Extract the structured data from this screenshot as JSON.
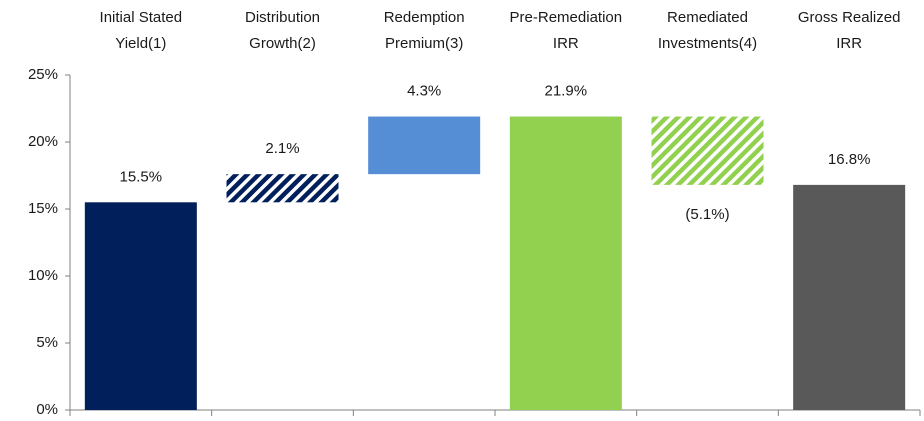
{
  "chart_data": {
    "type": "waterfall",
    "categories": [
      [
        "Initial Stated",
        "Yield(1)"
      ],
      [
        "Distribution",
        "Growth(2)"
      ],
      [
        "Redemption",
        "Premium(3)"
      ],
      [
        "Pre-Remediation",
        "IRR"
      ],
      [
        "Remediated",
        "Investments(4)"
      ],
      [
        "Gross Realized",
        "IRR"
      ]
    ],
    "values": [
      15.5,
      2.1,
      4.3,
      21.9,
      -5.1,
      16.8
    ],
    "value_labels": [
      "15.5%",
      "2.1%",
      "4.3%",
      "21.9%",
      "(5.1%)",
      "16.8%"
    ],
    "bar_kinds": [
      "total",
      "delta",
      "delta",
      "total",
      "delta",
      "total"
    ],
    "colors": [
      "#001f5b",
      "#001f5b",
      "#558ed5",
      "#92d050",
      "#92d050",
      "#595959"
    ],
    "hatched": [
      false,
      true,
      false,
      false,
      true,
      false
    ],
    "ylim": [
      0,
      25
    ],
    "yticks": [
      {
        "value": 0,
        "label": "0%"
      },
      {
        "value": 5,
        "label": "5%"
      },
      {
        "value": 10,
        "label": "10%"
      },
      {
        "value": 15,
        "label": "15%"
      },
      {
        "value": 20,
        "label": "20%"
      },
      {
        "value": 25,
        "label": "25%"
      }
    ],
    "grid": false
  }
}
